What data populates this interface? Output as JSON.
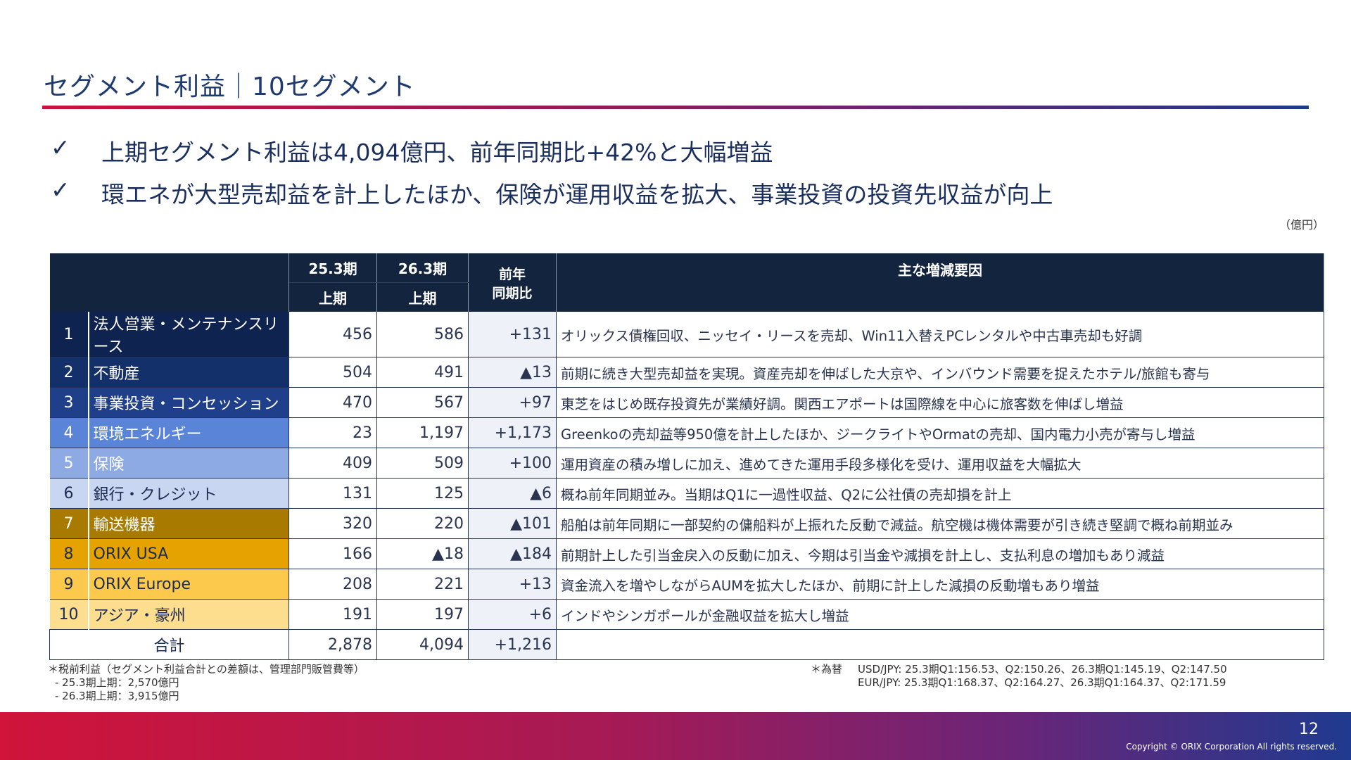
{
  "title": "セグメント利益｜10セグメント",
  "bullets": [
    "上期セグメント利益は4,094億円、前年同期比+42%と大幅増益",
    "環エネが大型売却益を計上したほか、保険が運用収益を拡大、事業投資の投資先収益が向上"
  ],
  "check": "✓",
  "unit": "（億円）",
  "table": {
    "headers": {
      "p1": "25.3期",
      "p2": "26.3期",
      "h1": "上期",
      "h2": "上期",
      "yoy": "前年\n同期比",
      "reason": "主な増減要因"
    },
    "rows": [
      {
        "no": "1",
        "name": "法人営業・メンテナンスリース",
        "a": "456",
        "b": "586",
        "yoy": "+131",
        "reason": "オリックス債権回収、ニッセイ・リースを売却、Win11入替えPCレンタルや中古車売却も好調",
        "color": "#0f2350",
        "fg": "#ffffff"
      },
      {
        "no": "2",
        "name": "不動産",
        "a": "504",
        "b": "491",
        "yoy": "▲13",
        "reason": "前期に続き大型売却益を実現。資産売却を伸ばした大京や、インバウンド需要を捉えたホテル/旅館も寄与",
        "color": "#14306b",
        "fg": "#ffffff"
      },
      {
        "no": "3",
        "name": "事業投資・コンセッション",
        "a": "470",
        "b": "567",
        "yoy": "+97",
        "reason": "東芝をはじめ既存投資先が業績好調。関西エアポートは国際線を中心に旅客数を伸ばし増益",
        "color": "#1f3f8a",
        "fg": "#ffffff"
      },
      {
        "no": "4",
        "name": "環境エネルギー",
        "a": "23",
        "b": "1,197",
        "yoy": "+1,173",
        "reason": "Greenkoの売却益等950億を計上したほか、ジークライトやOrmatの売却、国内電力小売が寄与し増益",
        "color": "#5a84d8",
        "fg": "#ffffff"
      },
      {
        "no": "5",
        "name": "保険",
        "a": "409",
        "b": "509",
        "yoy": "+100",
        "reason": "運用資産の積み増しに加え、進めてきた運用手段多様化を受け、運用収益を大幅拡大",
        "color": "#8eaae4",
        "fg": "#ffffff"
      },
      {
        "no": "6",
        "name": "銀行・クレジット",
        "a": "131",
        "b": "125",
        "yoy": "▲6",
        "reason": "概ね前年同期並み。当期はQ1に一過性収益、Q2に公社債の売却損を計上",
        "color": "#c8d6f2",
        "fg": "#1d2c52"
      },
      {
        "no": "7",
        "name": "輸送機器",
        "a": "320",
        "b": "220",
        "yoy": "▲101",
        "reason": "船舶は前年同期に一部契約の傭船料が上振れた反動で減益。航空機は機体需要が引き続き堅調で概ね前期並み",
        "color": "#a87b00",
        "fg": "#ffffff"
      },
      {
        "no": "8",
        "name": "ORIX USA",
        "a": "166",
        "b": "▲18",
        "yoy": "▲184",
        "reason": "前期計上した引当金戻入の反動に加え、今期は引当金や減損を計上し、支払利息の増加もあり減益",
        "color": "#e6a300",
        "fg": "#1d2c52"
      },
      {
        "no": "9",
        "name": "ORIX Europe",
        "a": "208",
        "b": "221",
        "yoy": "+13",
        "reason": "資金流入を増やしながらAUMを拡大したほか、前期に計上した減損の反動増もあり増益",
        "color": "#fcc94c",
        "fg": "#1d2c52"
      },
      {
        "no": "10",
        "name": "アジア・豪州",
        "a": "191",
        "b": "197",
        "yoy": "+6",
        "reason": "インドやシンガポールが金融収益を拡大し増益",
        "color": "#fddd8e",
        "fg": "#1d2c52"
      }
    ],
    "total": {
      "label": "合計",
      "a": "2,878",
      "b": "4,094",
      "yoy": "+1,216"
    }
  },
  "footnotes": {
    "left": [
      "＊税前利益（セグメント利益合計との差額は、管理部門販管費等）",
      "- 25.3期上期：2,570億円",
      "- 26.3期上期：3,915億円"
    ],
    "fx_label": "＊為替",
    "fx": [
      "USD/JPY: 25.3期Q1:156.53、Q2:150.26、26.3期Q1:145.19、Q2:147.50",
      "EUR/JPY: 25.3期Q1:168.37、Q2:164.27、26.3期Q1:164.37、Q2:171.59"
    ]
  },
  "page": "12",
  "copyright": "Copyright © ORIX Corporation All rights reserved."
}
